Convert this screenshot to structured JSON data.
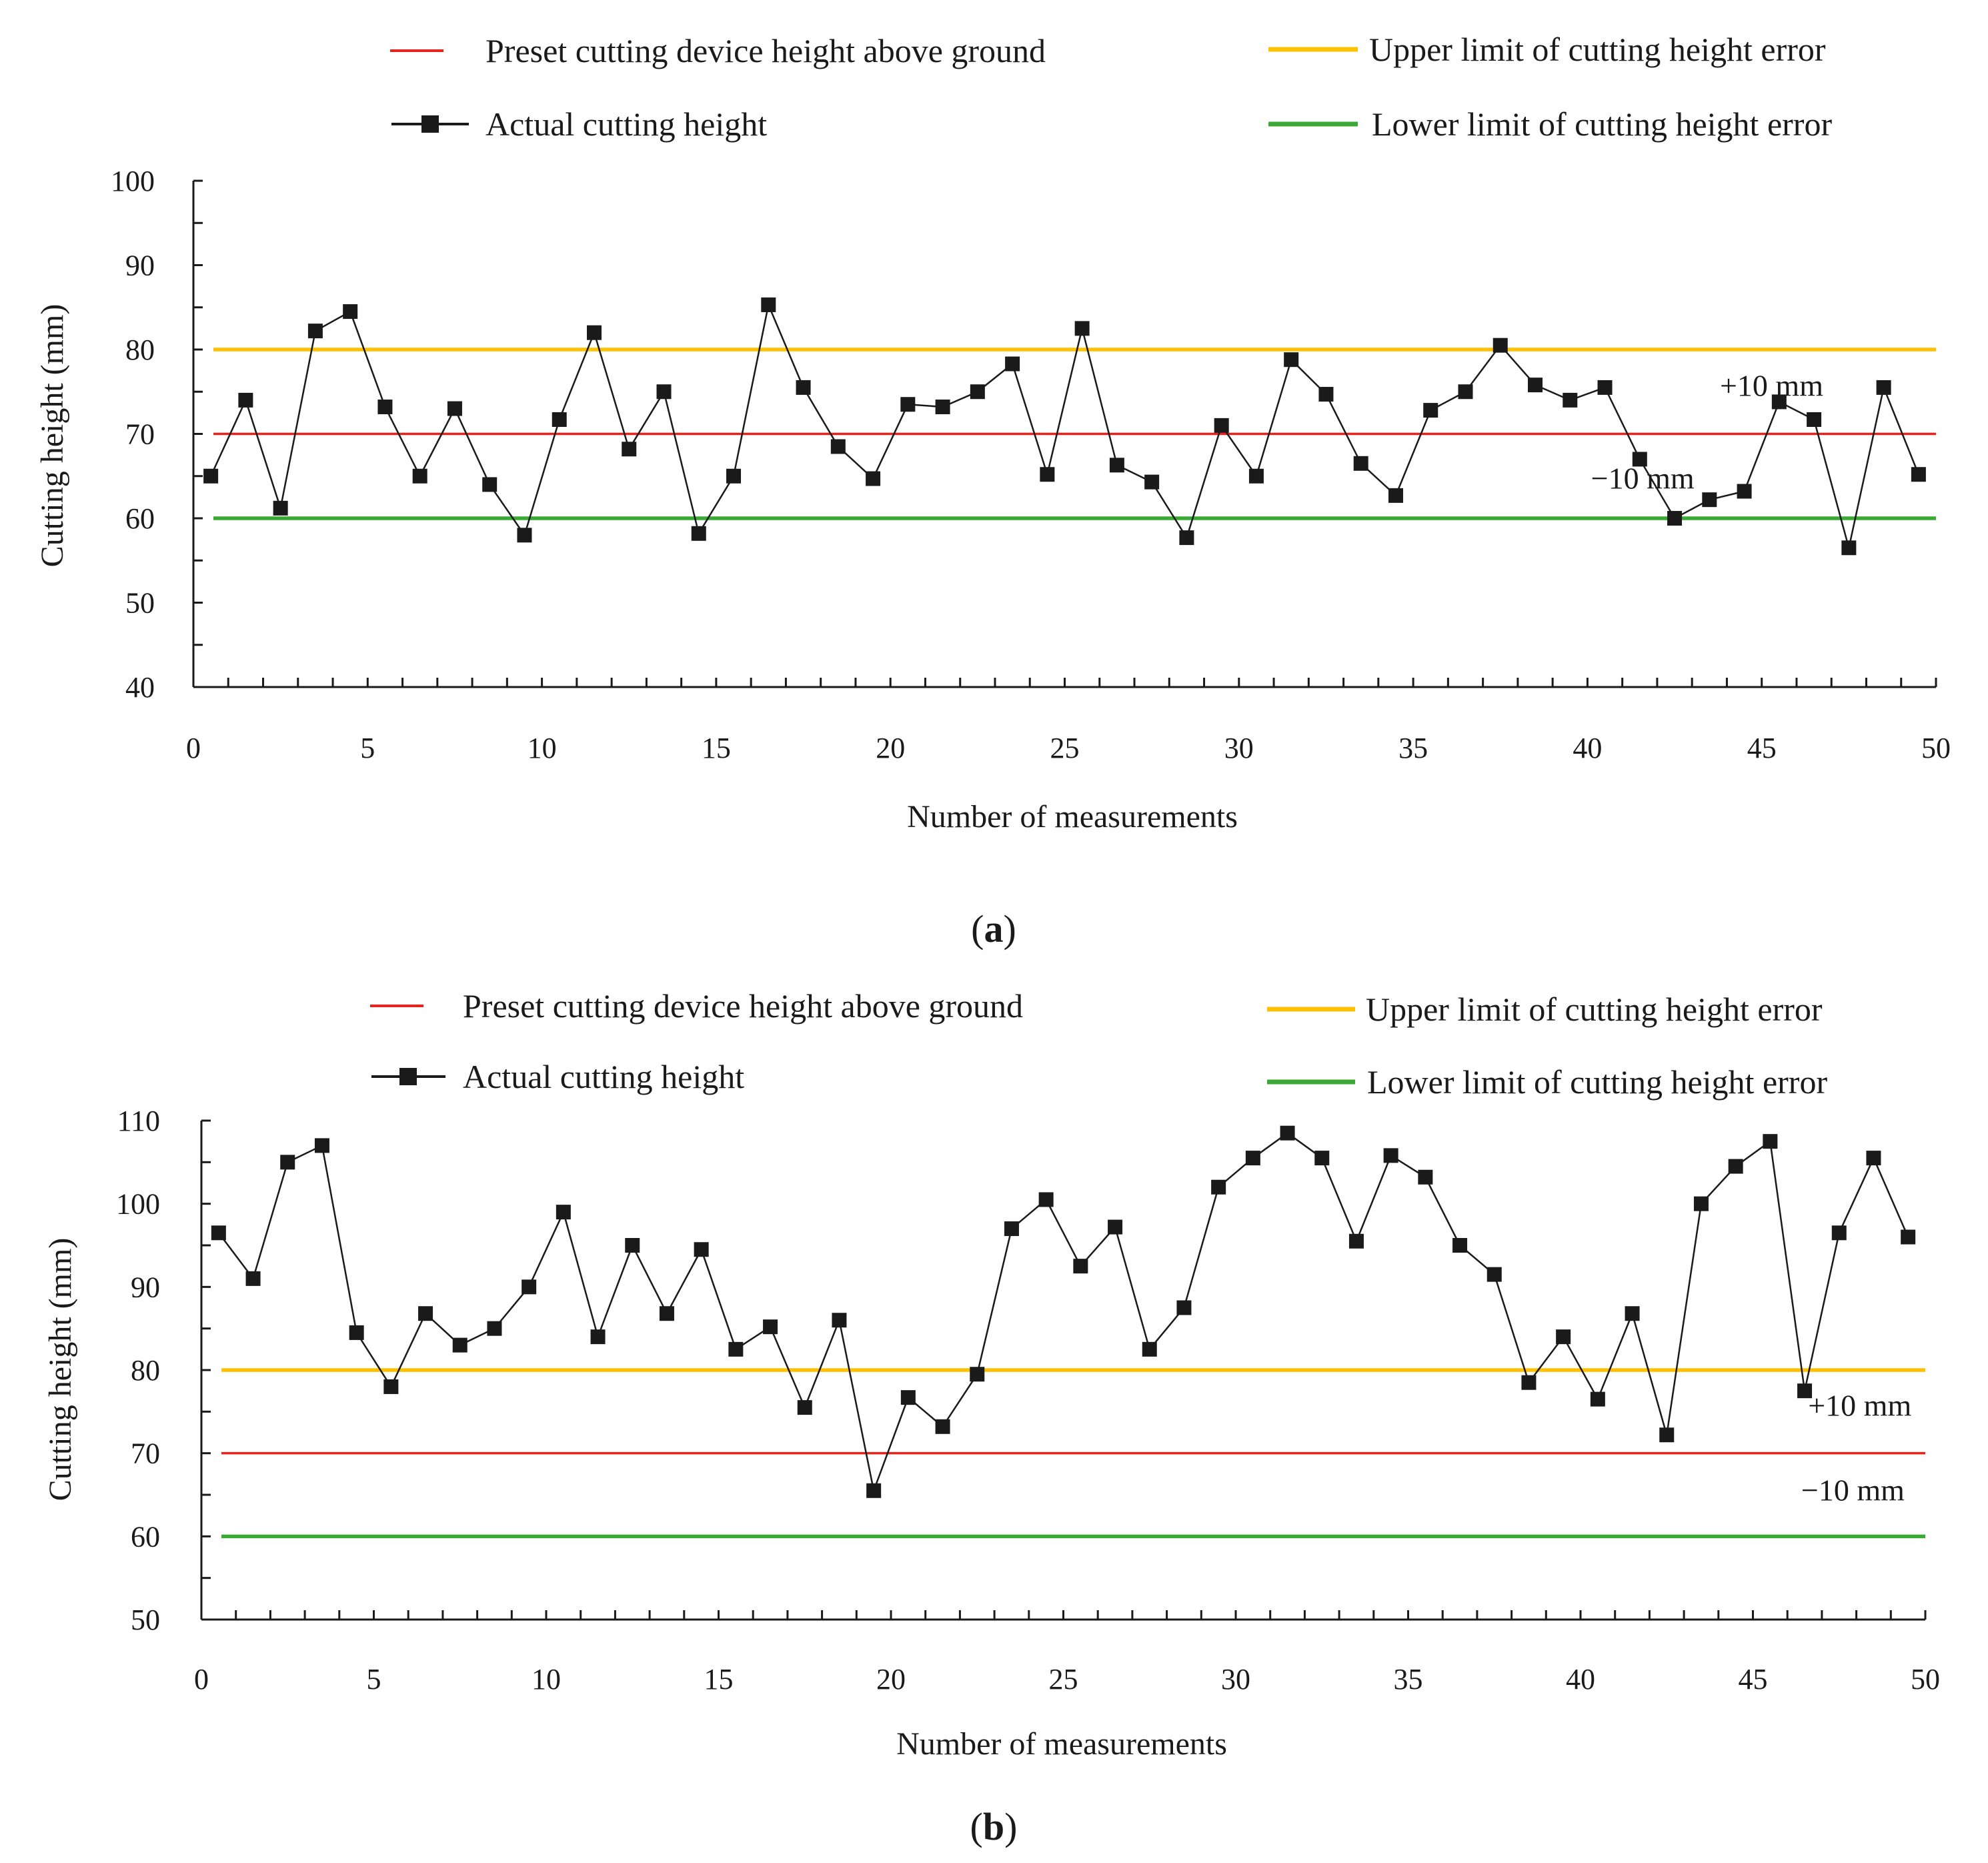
{
  "chart_data": [
    {
      "type": "line",
      "panel_label": "(a)",
      "panel_letter": "a",
      "xlabel": "Number of measurements",
      "ylabel": "Cutting height (mm)",
      "xlim": [
        0,
        50
      ],
      "ylim": [
        40,
        100
      ],
      "xticks": [
        0,
        5,
        10,
        15,
        20,
        25,
        30,
        35,
        40,
        45,
        50
      ],
      "yticks": [
        40,
        50,
        60,
        70,
        80,
        90,
        100
      ],
      "grid": false,
      "series": [
        {
          "name": "Actual cutting height",
          "color": "#1a1a1a",
          "marker": "square",
          "x": [
            0.5,
            1.5,
            2.5,
            3.5,
            4.5,
            5.5,
            6.5,
            7.5,
            8.5,
            9.5,
            10.5,
            11.5,
            12.5,
            13.5,
            14.5,
            15.5,
            16.5,
            17.5,
            18.5,
            19.5,
            20.5,
            21.5,
            22.5,
            23.5,
            24.5,
            25.5,
            26.5,
            27.5,
            28.5,
            29.5,
            30.5,
            31.5,
            32.5,
            33.5,
            34.5,
            35.5,
            36.5,
            37.5,
            38.5,
            39.5,
            40.5,
            41.5,
            42.5,
            43.5,
            44.5,
            45.5,
            46.5,
            47.5,
            48.5,
            49.5
          ],
          "y": [
            65,
            74,
            61.2,
            82.2,
            84.5,
            73.2,
            65,
            73,
            64,
            58,
            71.7,
            82,
            68.2,
            75,
            58.2,
            65,
            85.3,
            75.5,
            68.5,
            64.7,
            73.5,
            73.2,
            75,
            78.3,
            65.2,
            82.5,
            66.3,
            64.3,
            57.7,
            71,
            65,
            78.8,
            74.7,
            66.5,
            62.7,
            72.8,
            75,
            80.5,
            75.8,
            74,
            75.5,
            67,
            60,
            62.2,
            63.2,
            73.8,
            71.7,
            56.5,
            75.5,
            65.2
          ]
        },
        {
          "name": "Preset cutting device height above ground",
          "color": "#e8231b",
          "hline": 70
        },
        {
          "name": "Upper limit of cutting height error",
          "color": "#ffc000",
          "hline": 80
        },
        {
          "name": "Lower limit of cutting height error",
          "color": "#3aaa35",
          "hline": 60
        }
      ],
      "annotations": [
        {
          "text": "+10 mm",
          "x": 43.8,
          "y": 74.5
        },
        {
          "text": "−10 mm",
          "x": 40.1,
          "y": 63.5
        }
      ]
    },
    {
      "type": "line",
      "panel_label": "(b)",
      "panel_letter": "b",
      "xlabel": "Number of measurements",
      "ylabel": "Cutting height (mm)",
      "xlim": [
        0,
        50
      ],
      "ylim": [
        50,
        110
      ],
      "xticks": [
        0,
        5,
        10,
        15,
        20,
        25,
        30,
        35,
        40,
        45,
        50
      ],
      "yticks": [
        50,
        60,
        70,
        80,
        90,
        100,
        110
      ],
      "grid": false,
      "series": [
        {
          "name": "Actual cutting height",
          "color": "#1a1a1a",
          "marker": "square",
          "x": [
            0.5,
            1.5,
            2.5,
            3.5,
            4.5,
            5.5,
            6.5,
            7.5,
            8.5,
            9.5,
            10.5,
            11.5,
            12.5,
            13.5,
            14.5,
            15.5,
            16.5,
            17.5,
            18.5,
            19.5,
            20.5,
            21.5,
            22.5,
            23.5,
            24.5,
            25.5,
            26.5,
            27.5,
            28.5,
            29.5,
            30.5,
            31.5,
            32.5,
            33.5,
            34.5,
            35.5,
            36.5,
            37.5,
            38.5,
            39.5,
            40.5,
            41.5,
            42.5,
            43.5,
            44.5,
            45.5,
            46.5,
            47.5,
            48.5,
            49.5
          ],
          "y": [
            96.5,
            91,
            105,
            107,
            84.5,
            78,
            86.8,
            83,
            85,
            90,
            99,
            84,
            95,
            86.8,
            94.5,
            82.5,
            85.2,
            75.5,
            86,
            65.5,
            76.7,
            73.2,
            79.5,
            97,
            100.5,
            92.5,
            97.2,
            82.5,
            87.5,
            102,
            105.5,
            108.5,
            105.5,
            95.5,
            105.8,
            103.2,
            95,
            91.5,
            78.5,
            84,
            76.5,
            86.8,
            72.2,
            100,
            104.5,
            107.5,
            77.5,
            96.5,
            105.5,
            96
          ]
        },
        {
          "name": "Preset cutting device height above ground",
          "color": "#e8231b",
          "hline": 70
        },
        {
          "name": "Upper limit of cutting height error",
          "color": "#ffc000",
          "hline": 80
        },
        {
          "name": "Lower limit of cutting height error",
          "color": "#3aaa35",
          "hline": 60
        }
      ],
      "annotations": [
        {
          "text": "+10 mm",
          "x": 46.6,
          "y": 74.5
        },
        {
          "text": "−10 mm",
          "x": 46.4,
          "y": 64.3
        }
      ]
    }
  ]
}
